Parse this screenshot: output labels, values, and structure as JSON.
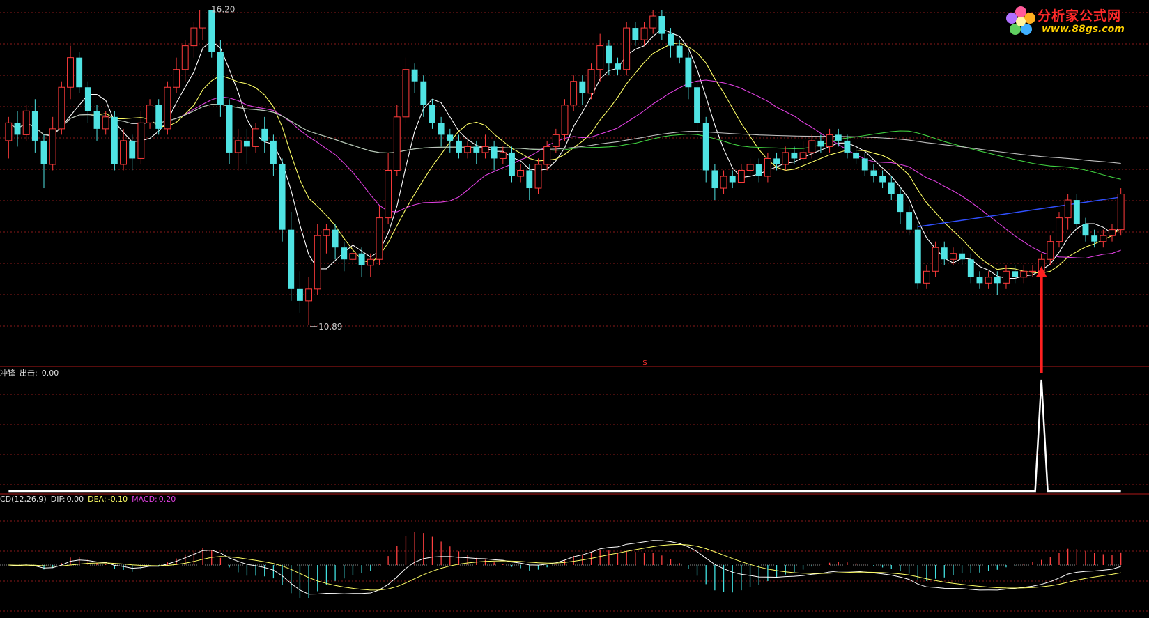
{
  "logo": {
    "title": "分析家公式网",
    "url": "www.88gs.com"
  },
  "price_labels": {
    "high": "16.20",
    "low": "10.89"
  },
  "divider_marker": "$",
  "indicator1": {
    "name": "冲锋",
    "field_label": "出击:",
    "field_value": "0.00"
  },
  "macd_panel": {
    "name": "CD(12,26,9)",
    "dif_label": "DIF:",
    "dif_value": "0.00",
    "dea_label": "DEA:",
    "dea_value": "-0.10",
    "macd_label": "MACD:",
    "macd_value": "0.20"
  },
  "colors": {
    "background": "#000000",
    "up_candle": "#ff3b3b",
    "down_candle": "#4fe3e3",
    "ma5": "#ffffff",
    "ma10": "#ffff66",
    "ma20": "#e040e0",
    "ma60": "#40d040",
    "ma120": "#c0c0c0",
    "trend_line": "#3050ff",
    "signal_arrow": "#ff2020",
    "grid": "#8b1a1a",
    "dif": "#ffffff",
    "dea": "#ffff66",
    "macd_pos": "#ff4040",
    "macd_neg": "#40e0e0"
  },
  "chart_data": [
    {
      "type": "candlestick",
      "title": "",
      "ylim": [
        10.5,
        16.3
      ],
      "annotations": [
        {
          "text": "16.20",
          "at_index": 22
        },
        {
          "text": "10.89",
          "at_index": 34
        }
      ],
      "signal_index": 117,
      "candles": [
        [
          14.0,
          14.3,
          14.4,
          13.7
        ],
        [
          14.3,
          14.1,
          14.5,
          13.9
        ],
        [
          14.1,
          14.5,
          14.6,
          14.0
        ],
        [
          14.5,
          14.0,
          14.7,
          13.8
        ],
        [
          14.0,
          13.6,
          14.1,
          13.2
        ],
        [
          13.6,
          14.2,
          14.4,
          13.5
        ],
        [
          14.2,
          14.9,
          15.0,
          14.1
        ],
        [
          14.9,
          15.4,
          15.6,
          14.7
        ],
        [
          15.4,
          14.9,
          15.5,
          14.8
        ],
        [
          14.9,
          14.5,
          15.0,
          14.3
        ],
        [
          14.5,
          14.2,
          14.6,
          14.0
        ],
        [
          14.2,
          14.4,
          14.5,
          14.1
        ],
        [
          14.4,
          13.6,
          14.5,
          13.5
        ],
        [
          13.6,
          14.0,
          14.2,
          13.5
        ],
        [
          14.0,
          13.7,
          14.1,
          13.5
        ],
        [
          13.7,
          14.3,
          14.5,
          13.6
        ],
        [
          14.3,
          14.6,
          14.7,
          14.2
        ],
        [
          14.6,
          14.2,
          14.7,
          14.1
        ],
        [
          14.2,
          14.9,
          15.0,
          14.1
        ],
        [
          14.9,
          15.2,
          15.4,
          14.8
        ],
        [
          15.2,
          15.6,
          15.7,
          15.0
        ],
        [
          15.6,
          15.9,
          16.0,
          15.4
        ],
        [
          15.9,
          16.2,
          16.2,
          15.7
        ],
        [
          16.2,
          15.5,
          16.2,
          15.4
        ],
        [
          15.5,
          14.6,
          15.7,
          14.4
        ],
        [
          14.6,
          13.8,
          14.7,
          13.6
        ],
        [
          13.8,
          14.0,
          14.2,
          13.5
        ],
        [
          14.0,
          13.9,
          14.2,
          13.6
        ],
        [
          13.9,
          14.2,
          14.3,
          13.8
        ],
        [
          14.2,
          14.0,
          14.4,
          13.8
        ],
        [
          14.0,
          13.6,
          14.1,
          13.4
        ],
        [
          13.6,
          12.5,
          13.7,
          12.3
        ],
        [
          12.5,
          11.5,
          12.8,
          11.3
        ],
        [
          11.5,
          11.3,
          11.8,
          11.1
        ],
        [
          11.3,
          11.5,
          11.7,
          10.89
        ],
        [
          11.5,
          12.4,
          12.6,
          11.4
        ],
        [
          12.4,
          12.5,
          12.6,
          12.1
        ],
        [
          12.5,
          12.2,
          12.6,
          12.0
        ],
        [
          12.2,
          12.0,
          12.3,
          11.8
        ],
        [
          12.0,
          12.1,
          12.3,
          11.9
        ],
        [
          12.1,
          11.9,
          12.2,
          11.7
        ],
        [
          11.9,
          12.0,
          12.1,
          11.7
        ],
        [
          12.0,
          12.7,
          12.9,
          11.9
        ],
        [
          12.7,
          13.5,
          13.8,
          12.6
        ],
        [
          13.5,
          14.4,
          14.6,
          13.4
        ],
        [
          14.4,
          15.2,
          15.4,
          14.3
        ],
        [
          15.2,
          15.0,
          15.3,
          14.8
        ],
        [
          15.0,
          14.6,
          15.1,
          14.4
        ],
        [
          14.6,
          14.3,
          14.7,
          14.2
        ],
        [
          14.3,
          14.1,
          14.4,
          13.9
        ],
        [
          14.1,
          14.0,
          14.2,
          13.8
        ],
        [
          14.0,
          13.8,
          14.1,
          13.7
        ],
        [
          13.8,
          13.9,
          14.0,
          13.7
        ],
        [
          13.9,
          13.8,
          14.0,
          13.6
        ],
        [
          13.8,
          13.9,
          14.1,
          13.7
        ],
        [
          13.9,
          13.7,
          14.0,
          13.5
        ],
        [
          13.7,
          13.8,
          13.9,
          13.6
        ],
        [
          13.8,
          13.4,
          13.9,
          13.3
        ],
        [
          13.4,
          13.5,
          13.6,
          13.3
        ],
        [
          13.5,
          13.2,
          13.6,
          13.0
        ],
        [
          13.2,
          13.6,
          13.7,
          13.1
        ],
        [
          13.6,
          13.9,
          14.0,
          13.5
        ],
        [
          13.9,
          14.1,
          14.2,
          13.8
        ],
        [
          14.1,
          14.6,
          14.7,
          14.0
        ],
        [
          14.6,
          15.0,
          15.1,
          14.5
        ],
        [
          15.0,
          14.8,
          15.1,
          14.6
        ],
        [
          14.8,
          15.2,
          15.3,
          14.7
        ],
        [
          15.2,
          15.6,
          15.8,
          15.0
        ],
        [
          15.6,
          15.3,
          15.7,
          15.1
        ],
        [
          15.3,
          15.2,
          15.4,
          15.1
        ],
        [
          15.2,
          15.9,
          16.0,
          15.1
        ],
        [
          15.9,
          15.7,
          16.0,
          15.6
        ],
        [
          15.7,
          15.9,
          16.0,
          15.6
        ],
        [
          15.9,
          16.1,
          16.2,
          15.8
        ],
        [
          16.1,
          15.8,
          16.2,
          15.7
        ],
        [
          15.8,
          15.6,
          15.9,
          15.4
        ],
        [
          15.6,
          15.4,
          15.7,
          15.3
        ],
        [
          15.4,
          14.9,
          15.5,
          14.7
        ],
        [
          14.9,
          14.3,
          15.0,
          14.1
        ],
        [
          14.3,
          13.5,
          14.4,
          13.3
        ],
        [
          13.5,
          13.2,
          13.6,
          13.0
        ],
        [
          13.2,
          13.4,
          13.5,
          13.1
        ],
        [
          13.4,
          13.3,
          13.5,
          13.2
        ],
        [
          13.3,
          13.5,
          13.6,
          13.3
        ],
        [
          13.5,
          13.6,
          13.7,
          13.4
        ],
        [
          13.6,
          13.4,
          13.7,
          13.3
        ],
        [
          13.4,
          13.7,
          13.8,
          13.3
        ],
        [
          13.7,
          13.6,
          13.8,
          13.5
        ],
        [
          13.6,
          13.8,
          13.9,
          13.5
        ],
        [
          13.8,
          13.7,
          13.9,
          13.6
        ],
        [
          13.7,
          13.8,
          14.0,
          13.6
        ],
        [
          13.8,
          14.0,
          14.1,
          13.7
        ],
        [
          14.0,
          13.9,
          14.1,
          13.8
        ],
        [
          13.9,
          14.1,
          14.2,
          13.8
        ],
        [
          14.1,
          14.0,
          14.2,
          13.9
        ],
        [
          14.0,
          13.8,
          14.1,
          13.7
        ],
        [
          13.8,
          13.7,
          13.9,
          13.6
        ],
        [
          13.7,
          13.5,
          13.8,
          13.4
        ],
        [
          13.5,
          13.4,
          13.6,
          13.3
        ],
        [
          13.4,
          13.3,
          13.5,
          13.2
        ],
        [
          13.3,
          13.1,
          13.4,
          13.0
        ],
        [
          13.1,
          12.8,
          13.2,
          12.6
        ],
        [
          12.8,
          12.5,
          12.9,
          12.4
        ],
        [
          12.5,
          11.6,
          12.6,
          11.5
        ],
        [
          11.6,
          11.8,
          11.9,
          11.5
        ],
        [
          11.8,
          12.2,
          12.3,
          11.7
        ],
        [
          12.2,
          12.0,
          12.3,
          11.9
        ],
        [
          12.0,
          12.1,
          12.2,
          11.9
        ],
        [
          12.1,
          12.0,
          12.2,
          11.9
        ],
        [
          12.0,
          11.7,
          12.1,
          11.6
        ],
        [
          11.7,
          11.6,
          11.8,
          11.5
        ],
        [
          11.6,
          11.7,
          11.8,
          11.5
        ],
        [
          11.7,
          11.6,
          11.8,
          11.4
        ],
        [
          11.6,
          11.8,
          11.9,
          11.5
        ],
        [
          11.8,
          11.7,
          11.9,
          11.6
        ],
        [
          11.7,
          11.8,
          11.9,
          11.6
        ],
        [
          11.8,
          11.8,
          11.9,
          11.7
        ],
        [
          11.8,
          12.0,
          12.1,
          11.7
        ],
        [
          12.0,
          12.3,
          12.4,
          11.9
        ],
        [
          12.3,
          12.7,
          12.8,
          12.2
        ],
        [
          12.7,
          13.0,
          13.1,
          12.5
        ],
        [
          13.0,
          12.6,
          13.1,
          12.5
        ],
        [
          12.6,
          12.4,
          12.7,
          12.3
        ],
        [
          12.4,
          12.3,
          12.5,
          12.2
        ],
        [
          12.3,
          12.4,
          12.5,
          12.2
        ],
        [
          12.4,
          12.5,
          12.6,
          12.3
        ],
        [
          12.5,
          13.1,
          13.2,
          12.4
        ]
      ]
    },
    {
      "type": "line",
      "title": "冲锋",
      "series": [
        {
          "name": "出击",
          "signal_index": 117,
          "value": 1
        }
      ]
    },
    {
      "type": "bar",
      "title": "CD(12,26,9)",
      "series_names": [
        "DIF",
        "DEA",
        "MACD"
      ]
    }
  ]
}
